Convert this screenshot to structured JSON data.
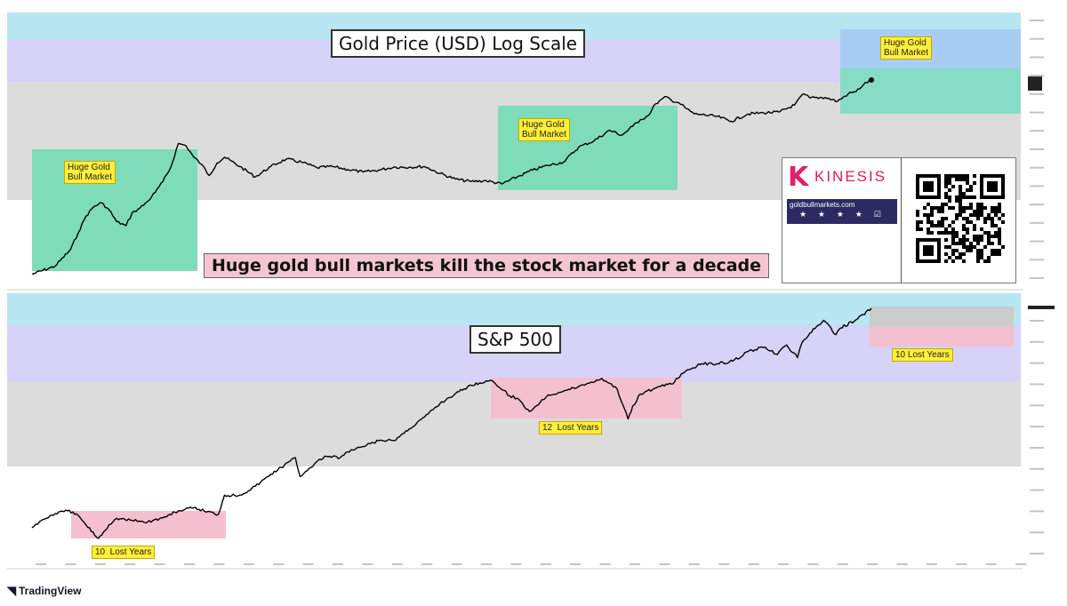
{
  "header": {
    "line1": "",
    "line2": ""
  },
  "gold_panel": {
    "title": "Gold Price (USD) Log Scale",
    "callouts": [
      "Huge Gold\nBull Market",
      "Huge Gold\nBull Market",
      "Huge Gold\nBull Market"
    ],
    "colors": {
      "band_top": "#b8e6f2",
      "band_mid": "#d7d2f7",
      "band_bottom": "#dcdcdc",
      "bull_box": "#7fdcb9",
      "line": "#000000"
    }
  },
  "headline": "Huge gold bull markets kill the stock market for a decade",
  "sp_panel": {
    "title": "S&P 500",
    "callouts": [
      "10  Lost Years",
      "12  Lost Years",
      "10 Lost Years"
    ],
    "colors": {
      "band_top": "#b8e6f2",
      "band_mid": "#d7d2f7",
      "band_bottom": "#dcdcdc",
      "lost_box": "#f4c0cf",
      "line": "#000000"
    }
  },
  "ad": {
    "brand": "KINESIS",
    "logo_letter": "K",
    "tagline": "",
    "url": "goldbullmarkets.com",
    "stars": "★ ★ ★ ★ ☑",
    "text": ""
  },
  "footer": {
    "logo_mark": "◥",
    "logo_text": "TradingView"
  },
  "chart_data": [
    {
      "type": "line",
      "title": "Gold Price (USD) Log Scale",
      "yscale": "log",
      "xlim": [
        1970,
        2033
      ],
      "series": [
        {
          "x": [
            1970.5,
            1972.0,
            1973.0,
            1973.5,
            1974.0,
            1974.5,
            1975.0,
            1975.5,
            1976.0,
            1976.6,
            1977.0,
            1977.5,
            1978.0,
            1978.5,
            1979.0,
            1979.5,
            1980.0,
            1980.5,
            1981.0,
            1981.5,
            1982.0,
            1982.5,
            1983.0,
            1984.0,
            1985.0,
            1986.0,
            1987.0,
            1988.0,
            1989.0,
            1990.0,
            1991.0,
            1992.0,
            1993.0,
            1994.0,
            1995.0,
            1996.0,
            1997.0,
            1998.0,
            1999.0,
            2000.0,
            2001.0,
            2002.0,
            2003.0,
            2004.0,
            2005.0,
            2006.0,
            2007.0,
            2008.0,
            2008.8,
            2009.5,
            2010.0,
            2010.5,
            2011.0,
            2011.7,
            2012.0,
            2012.5,
            2013.0,
            2013.5,
            2014.0,
            2015.0,
            2015.9,
            2017.0,
            2018.0,
            2019.0,
            2020.0,
            2020.6,
            2021.0,
            2022.0,
            2022.8,
            2023.5,
            2024.0,
            2024.5,
            2025.0
          ],
          "y": [
            36,
            43,
            62,
            90,
            130,
            160,
            175,
            150,
            115,
            105,
            140,
            155,
            180,
            220,
            280,
            380,
            650,
            620,
            480,
            410,
            320,
            420,
            480,
            390,
            310,
            390,
            460,
            430,
            380,
            390,
            365,
            345,
            360,
            385,
            385,
            390,
            335,
            295,
            280,
            285,
            265,
            310,
            360,
            400,
            430,
            600,
            690,
            870,
            780,
            950,
            1100,
            1200,
            1570,
            1830,
            1700,
            1600,
            1400,
            1250,
            1230,
            1180,
            1060,
            1250,
            1280,
            1300,
            1520,
            1950,
            1780,
            1800,
            1650,
            1950,
            2050,
            2400,
            2650
          ]
        }
      ]
    },
    {
      "type": "line",
      "title": "S&P 500",
      "yscale": "log",
      "xlim": [
        1970,
        2033
      ],
      "series": [
        {
          "x": [
            1970.5,
            1971.0,
            1972.0,
            1972.8,
            1973.5,
            1974.0,
            1974.8,
            1975.5,
            1976.0,
            1977.0,
            1978.0,
            1979.0,
            1980.0,
            1981.0,
            1982.6,
            1983.0,
            1984.0,
            1985.0,
            1986.0,
            1987.6,
            1987.9,
            1988.5,
            1989.5,
            1990.5,
            1991.0,
            1992.0,
            1993.0,
            1994.0,
            1995.0,
            1996.0,
            1997.0,
            1998.0,
            1999.0,
            2000.0,
            2000.5,
            2001.5,
            2002.0,
            2002.8,
            2003.5,
            2004.0,
            2005.0,
            2006.0,
            2007.5,
            2008.0,
            2008.5,
            2009.2,
            2009.5,
            2010.0,
            2011.0,
            2012.0,
            2013.0,
            2014.0,
            2015.0,
            2016.0,
            2017.0,
            2018.0,
            2018.9,
            2019.5,
            2020.2,
            2020.5,
            2021.0,
            2021.9,
            2022.7,
            2023.0,
            2024.0,
            2025.0
          ],
          "y": [
            85,
            96,
            112,
            118,
            108,
            90,
            69,
            90,
            102,
            98,
            95,
            103,
            118,
            125,
            110,
            160,
            160,
            190,
            240,
            330,
            230,
            270,
            340,
            330,
            370,
            410,
            460,
            460,
            580,
            730,
            950,
            1150,
            1350,
            1470,
            1430,
            1100,
            1050,
            810,
            970,
            1120,
            1200,
            1320,
            1540,
            1400,
            1250,
            700,
            900,
            1140,
            1280,
            1380,
            1800,
            2050,
            2050,
            2150,
            2600,
            2800,
            2450,
            2950,
            2300,
            3100,
            3700,
            4750,
            3600,
            4100,
            4800,
            6000
          ]
        }
      ]
    }
  ]
}
